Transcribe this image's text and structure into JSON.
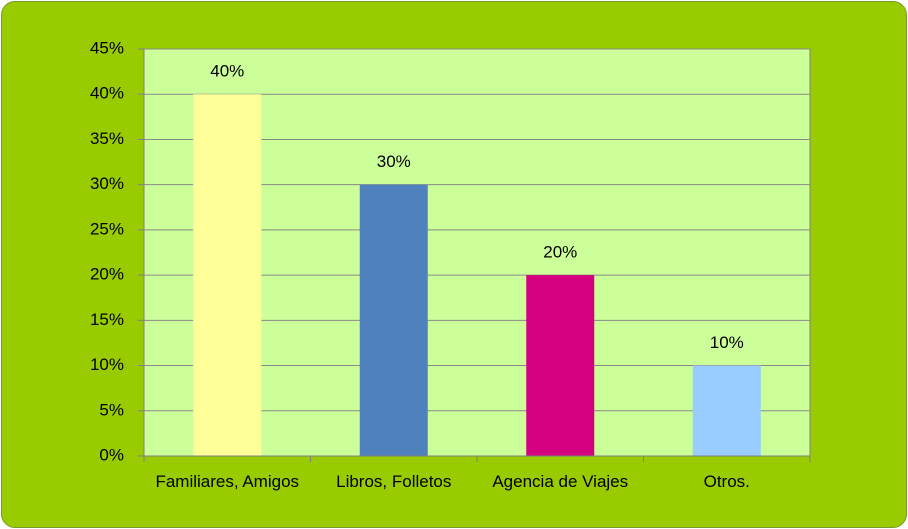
{
  "chart_data": {
    "type": "bar",
    "categories": [
      "Familiares, Amigos",
      "Libros, Folletos",
      "Agencia de Viajes",
      "Otros."
    ],
    "values": [
      40,
      30,
      20,
      10
    ],
    "value_labels": [
      "40%",
      "30%",
      "20%",
      "10%"
    ],
    "colors": [
      "#ffff99",
      "#4f81bd",
      "#d4007f",
      "#99ccff"
    ],
    "ylim": [
      0,
      45
    ],
    "yticks": [
      {
        "value": 0,
        "label": "0%"
      },
      {
        "value": 5,
        "label": "5%"
      },
      {
        "value": 10,
        "label": "10%"
      },
      {
        "value": 15,
        "label": "15%"
      },
      {
        "value": 20,
        "label": "20%"
      },
      {
        "value": 25,
        "label": "25%"
      },
      {
        "value": 30,
        "label": "30%"
      },
      {
        "value": 35,
        "label": "35%"
      },
      {
        "value": 40,
        "label": "40%"
      },
      {
        "value": 45,
        "label": "45%"
      }
    ],
    "grid": true
  }
}
